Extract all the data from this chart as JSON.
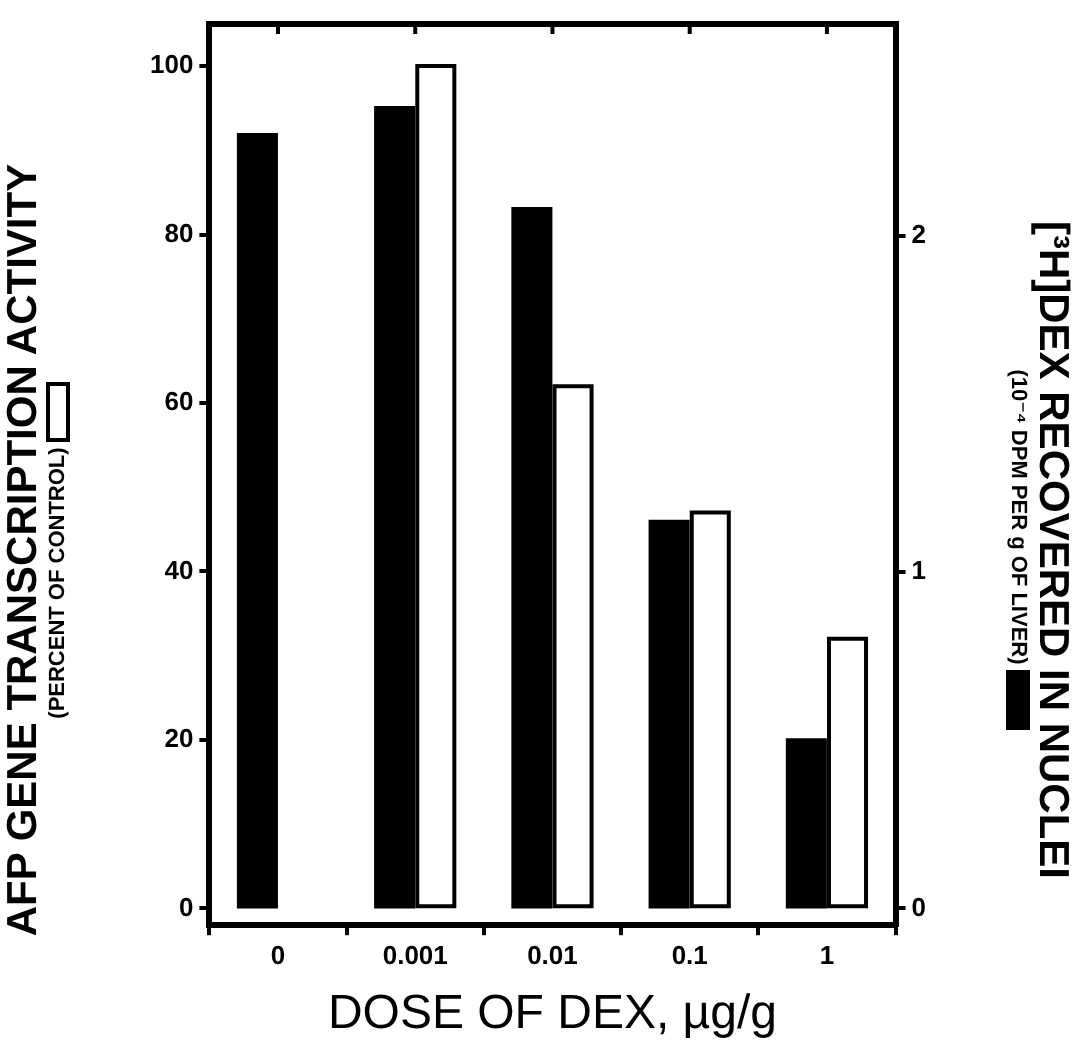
{
  "chart_data": {
    "type": "bar",
    "categories": [
      "0",
      "0.001",
      "0.01",
      "0.1",
      "1"
    ],
    "xlabel": "DOSE OF DEX, µg/g",
    "ylabel": "AFP GENE TRANSCRIPTION ACTIVITY\n(PERCENT OF CONTROL)",
    "y2label": "[³H]DEX RECOVERED IN NUCLEI\n(10⁻⁴ DPM PER g OF LIVER)",
    "series": [
      {
        "color": "#000000",
        "axis": "y2",
        "values": [
          2.3,
          2.38,
          2.08,
          1.15,
          0.5
        ]
      },
      {
        "color": "#ffffff",
        "values": [
          null,
          100,
          62,
          47,
          32
        ]
      }
    ],
    "ylim": [
      -2,
      105
    ],
    "yticks": [
      0,
      20,
      40,
      60,
      80,
      100
    ],
    "y2lim": [
      -0.05,
      2.63
    ],
    "y2ticks": [
      0,
      1,
      2
    ],
    "grid": false,
    "legend": false
  }
}
